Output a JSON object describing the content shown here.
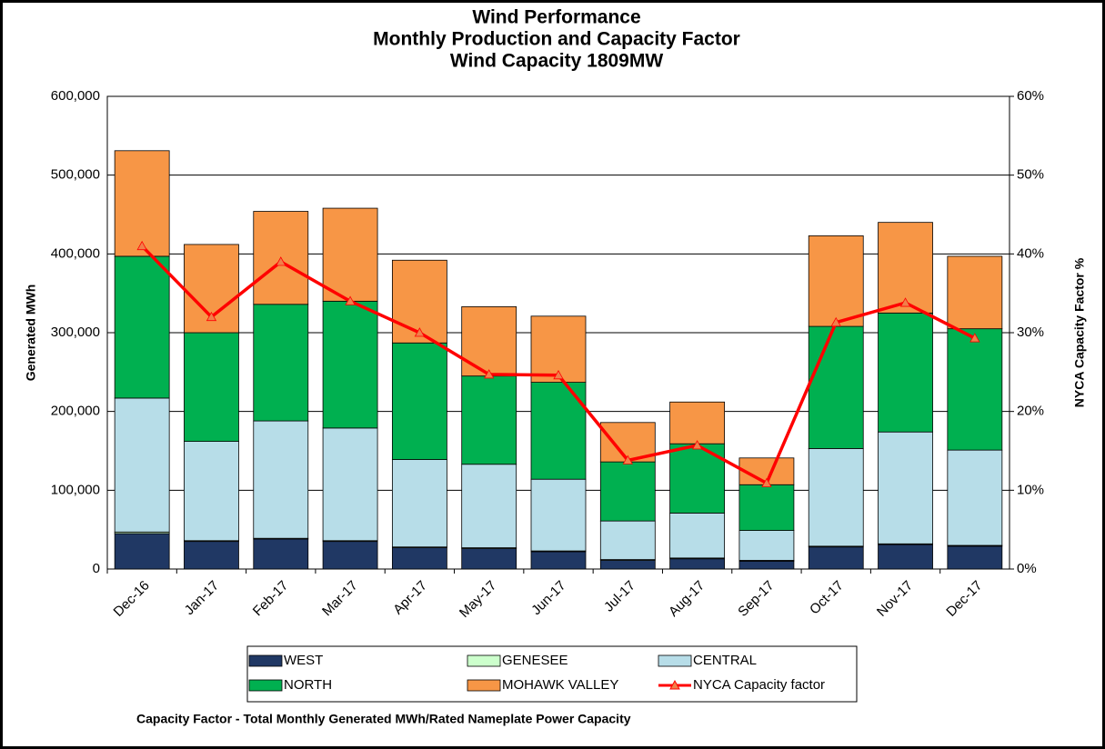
{
  "chart_data": {
    "type": "bar",
    "stacked": true,
    "title": [
      "Wind Performance",
      "Monthly Production and Capacity Factor",
      "Wind Capacity 1809MW"
    ],
    "y_label": "Generated  MWh",
    "y2_label": "NYCA Capacity  Factor %",
    "footnote": "Capacity Factor  - Total Monthly Generated MWh/Rated Nameplate Power Capacity",
    "categories": [
      "Dec-16",
      "Jan-17",
      "Feb-17",
      "Mar-17",
      "Apr-17",
      "May-17",
      "Jun-17",
      "Jul-17",
      "Aug-17",
      "Sep-17",
      "Oct-17",
      "Nov-17",
      "Dec-17"
    ],
    "series": [
      {
        "name": "WEST",
        "color": "#203864",
        "values": [
          45000,
          35000,
          38000,
          35000,
          27000,
          26000,
          22000,
          11000,
          13000,
          10000,
          28000,
          31000,
          29000
        ]
      },
      {
        "name": "GENESEE",
        "color": "#ccffcc",
        "values": [
          2000,
          1000,
          1000,
          1000,
          1000,
          1000,
          1000,
          1000,
          1000,
          1000,
          1000,
          1000,
          1000
        ]
      },
      {
        "name": "CENTRAL",
        "color": "#b7dde8",
        "values": [
          170000,
          126000,
          149000,
          143000,
          111000,
          106000,
          91000,
          49000,
          57000,
          38000,
          124000,
          142000,
          121000
        ]
      },
      {
        "name": "NORTH",
        "color": "#00b050",
        "values": [
          180000,
          138000,
          148000,
          161000,
          148000,
          112000,
          123000,
          75000,
          88000,
          58000,
          155000,
          151000,
          154000
        ]
      },
      {
        "name": "MOHAWK VALLEY",
        "color": "#f79646",
        "values": [
          134000,
          112000,
          118000,
          118000,
          105000,
          88000,
          84000,
          50000,
          53000,
          34000,
          115000,
          115000,
          92000
        ]
      },
      {
        "name": "NYCA Capacity factor",
        "color": "#ff0000",
        "type": "line",
        "axis": "y2",
        "marker_color": "#f0804a",
        "values": [
          41,
          32,
          39,
          34,
          30,
          24.7,
          24.6,
          13.8,
          15.7,
          10.9,
          31.3,
          33.8,
          29.3
        ]
      }
    ],
    "ylim": [
      0,
      600000
    ],
    "yticks": [
      0,
      {
        "value": 100000,
        "label": "100,000"
      },
      {
        "value": 200000,
        "label": "200,000"
      },
      {
        "value": 300000,
        "label": "300,000"
      },
      {
        "value": 400000,
        "label": "400,000"
      },
      {
        "value": 500000,
        "label": "500,000"
      },
      {
        "value": 600000,
        "label": "600,000"
      }
    ],
    "y2lim": [
      0,
      60
    ],
    "y2ticks": [
      {
        "value": 0,
        "label": "0%"
      },
      {
        "value": 10,
        "label": "10%"
      },
      {
        "value": 20,
        "label": "20%"
      },
      {
        "value": 30,
        "label": "30%"
      },
      {
        "value": 40,
        "label": "40%"
      },
      {
        "value": 50,
        "label": "50%"
      },
      {
        "value": 60,
        "label": "60%"
      }
    ],
    "grid": true,
    "legend": "bottom"
  }
}
